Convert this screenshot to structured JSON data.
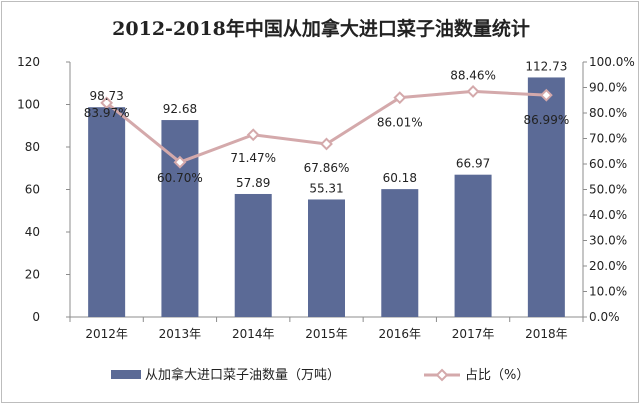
{
  "chart_data": {
    "type": "bar",
    "title": "2012-2018年中国从加拿大进口菜子油数量统计",
    "categories": [
      "2012年",
      "2013年",
      "2014年",
      "2015年",
      "2016年",
      "2017年",
      "2018年"
    ],
    "series": [
      {
        "name": "从加拿大进口菜子油数量（万吨）",
        "type": "bar",
        "axis": "left",
        "values": [
          98.73,
          92.68,
          57.89,
          55.31,
          60.18,
          66.97,
          112.73
        ],
        "labels": [
          "98.73",
          "92.68",
          "57.89",
          "55.31",
          "60.18",
          "66.97",
          "112.73"
        ],
        "color": "#5b6a96"
      },
      {
        "name": "占比（%）",
        "type": "line",
        "axis": "right",
        "values": [
          83.97,
          60.7,
          71.47,
          67.86,
          86.01,
          88.46,
          86.99
        ],
        "labels": [
          "83.97%",
          "60.70%",
          "71.47%",
          "67.86%",
          "86.01%",
          "88.46%",
          "86.99%"
        ],
        "color": "#d4a9ab"
      }
    ],
    "y_left": {
      "ylim": [
        0,
        120
      ],
      "ticks": [
        "0",
        "20",
        "40",
        "60",
        "80",
        "100",
        "120"
      ]
    },
    "y_right": {
      "ylim": [
        0,
        100
      ],
      "ticks": [
        "0.0%",
        "10.0%",
        "20.0%",
        "30.0%",
        "40.0%",
        "50.0%",
        "60.0%",
        "70.0%",
        "80.0%",
        "90.0%",
        "100.0%"
      ]
    },
    "grid": false,
    "legend_position": "bottom"
  }
}
